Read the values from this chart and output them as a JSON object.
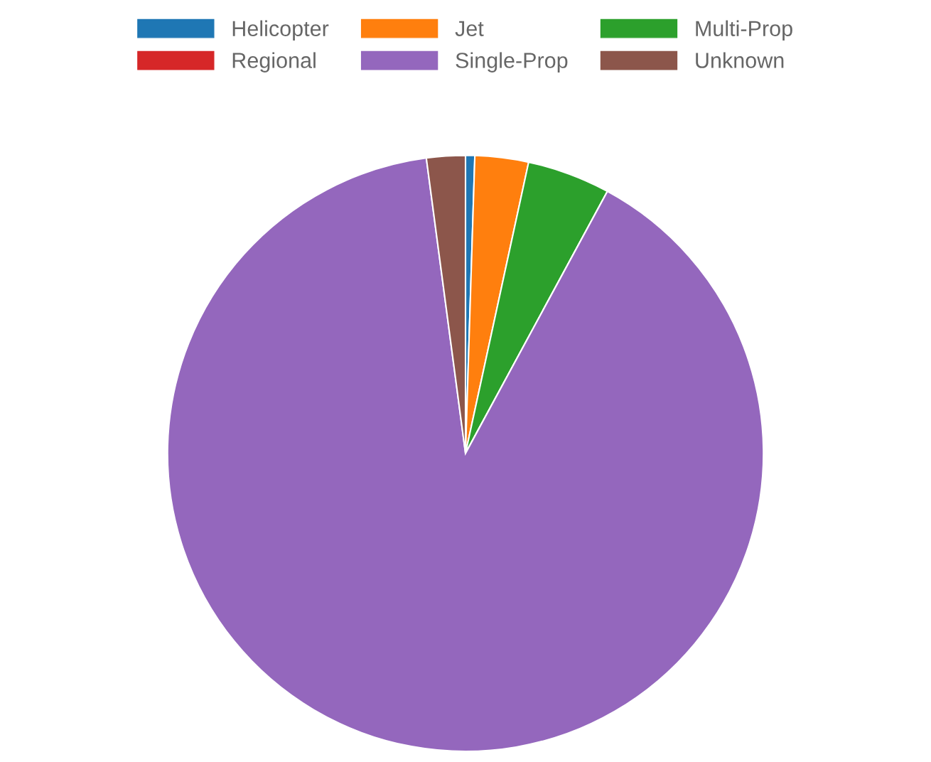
{
  "chart_data": {
    "type": "pie",
    "categories": [
      "Helicopter",
      "Jet",
      "Multi-Prop",
      "Regional",
      "Single-Prop",
      "Unknown"
    ],
    "values": [
      0.5,
      2.9,
      4.5,
      0,
      90.0,
      2.1
    ],
    "colors": [
      "#1f77b4",
      "#ff7f0e",
      "#2ca02c",
      "#d62728",
      "#9467bd",
      "#8c564b"
    ],
    "legend": "top"
  }
}
